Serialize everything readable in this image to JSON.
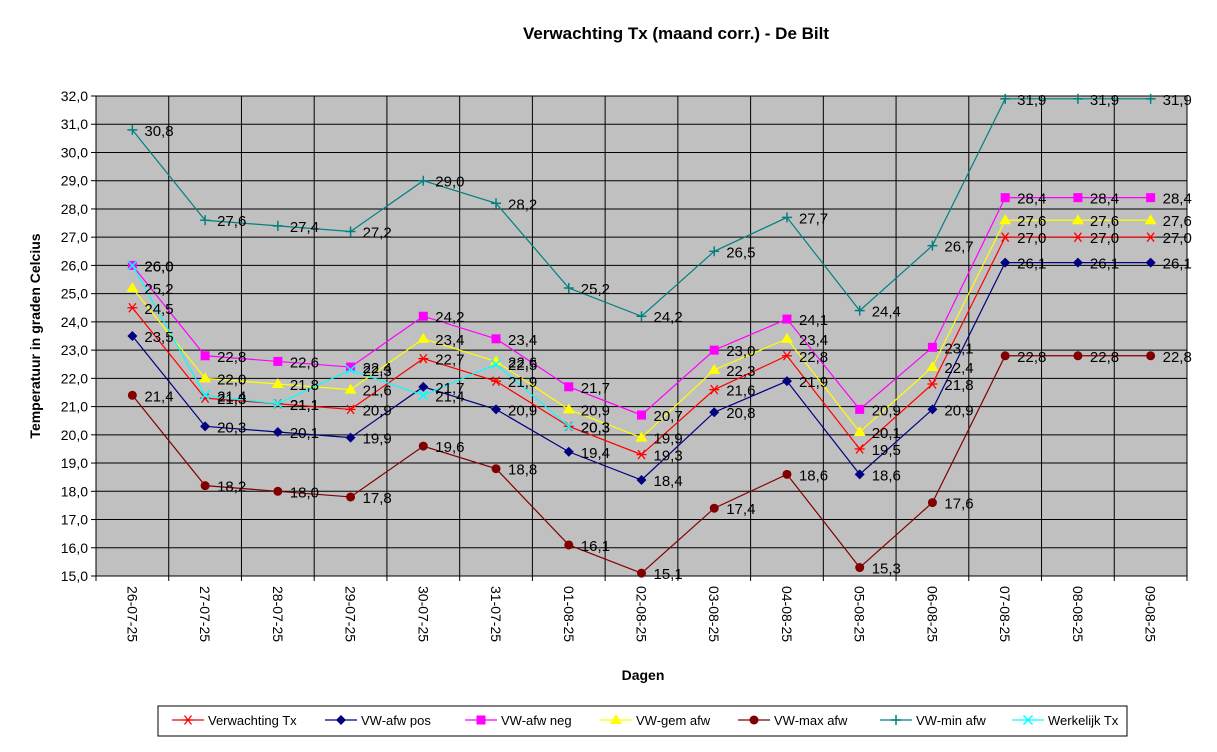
{
  "chart_data": {
    "type": "line",
    "title": "Verwachting Tx (maand corr.) - De Bilt",
    "xlabel": "Dagen",
    "ylabel": "Temperatuur in graden Celcius",
    "ylim": [
      15.0,
      32.0
    ],
    "ytick_step": 1.0,
    "yticks": [
      "15,0",
      "16,0",
      "17,0",
      "18,0",
      "19,0",
      "20,0",
      "21,0",
      "22,0",
      "23,0",
      "24,0",
      "25,0",
      "26,0",
      "27,0",
      "28,0",
      "29,0",
      "30,0",
      "31,0",
      "32,0"
    ],
    "grid": true,
    "plot_background": "#c0c0c0",
    "legend_position": "bottom",
    "categories": [
      "26-07-25",
      "27-07-25",
      "28-07-25",
      "29-07-25",
      "30-07-25",
      "31-07-25",
      "01-08-25",
      "02-08-25",
      "03-08-25",
      "04-08-25",
      "05-08-25",
      "06-08-25",
      "07-08-25",
      "08-08-25",
      "09-08-25"
    ],
    "series": [
      {
        "name": "Verwachting Tx",
        "color": "#ff0000",
        "marker": "asterisk",
        "values": [
          24.5,
          21.3,
          21.1,
          20.9,
          22.7,
          21.9,
          20.3,
          19.3,
          21.6,
          22.8,
          19.5,
          21.8,
          27.0,
          27.0,
          27.0
        ],
        "labels": [
          "24,5",
          "21,3",
          "21,1",
          "20,9",
          "22,7",
          "21,9",
          "20,3",
          "19,3",
          "21,6",
          "22,8",
          "19,5",
          "21,8",
          "27,0",
          "27,0",
          "27,0"
        ]
      },
      {
        "name": "VW-afw pos",
        "color": "#000080",
        "marker": "diamond",
        "values": [
          23.5,
          20.3,
          20.1,
          19.9,
          21.7,
          20.9,
          19.4,
          18.4,
          20.8,
          21.9,
          18.6,
          20.9,
          26.1,
          26.1,
          26.1
        ],
        "labels": [
          "23,5",
          "20,3",
          "20,1",
          "19,9",
          "21,7",
          "20,9",
          "19,4",
          "18,4",
          "20,8",
          "21,9",
          "18,6",
          "20,9",
          "26,1",
          "26,1",
          "26,1"
        ]
      },
      {
        "name": "VW-afw neg",
        "color": "#ff00ff",
        "marker": "square",
        "values": [
          26.0,
          22.8,
          22.6,
          22.4,
          24.2,
          23.4,
          21.7,
          20.7,
          23.0,
          24.1,
          20.9,
          23.1,
          28.4,
          28.4,
          28.4
        ],
        "labels": [
          "26,0",
          "22,8",
          "22,6",
          "22,4",
          "24,2",
          "23,4",
          "21,7",
          "20,7",
          "23,0",
          "24,1",
          "20,9",
          "23,1",
          "28,4",
          "28,4",
          "28,4"
        ]
      },
      {
        "name": "VW-gem afw",
        "color": "#ffff00",
        "marker": "triangle",
        "values": [
          25.2,
          22.0,
          21.8,
          21.6,
          23.4,
          22.6,
          20.9,
          19.9,
          22.3,
          23.4,
          20.1,
          22.4,
          27.6,
          27.6,
          27.6
        ],
        "labels": [
          "25,2",
          "22,0",
          "21,8",
          "21,6",
          "23,4",
          "22,6",
          "20,9",
          "19,9",
          "22,3",
          "23,4",
          "20,1",
          "22,4",
          "27,6",
          "27,6",
          "27,6"
        ]
      },
      {
        "name": "VW-max afw",
        "color": "#800000",
        "marker": "circle",
        "values": [
          21.4,
          18.2,
          18.0,
          17.8,
          19.6,
          18.8,
          16.1,
          15.1,
          17.4,
          18.6,
          15.3,
          17.6,
          22.8,
          22.8,
          22.8
        ],
        "labels": [
          "21,4",
          "18,2",
          "18,0",
          "17,8",
          "19,6",
          "18,8",
          "16,1",
          "15,1",
          "17,4",
          "18,6",
          "15,3",
          "17,6",
          "22,8",
          "22,8",
          "22,8"
        ]
      },
      {
        "name": "VW-min afw",
        "color": "#008080",
        "marker": "plus",
        "values": [
          30.8,
          27.6,
          27.4,
          27.2,
          29.0,
          28.2,
          25.2,
          24.2,
          26.5,
          27.7,
          24.4,
          26.7,
          31.9,
          31.9,
          31.9
        ],
        "labels": [
          "30,8",
          "27,6",
          "27,4",
          "27,2",
          "29,0",
          "28,2",
          "25,2",
          "24,2",
          "26,5",
          "27,7",
          "24,4",
          "26,7",
          "31,9",
          "31,9",
          "31,9"
        ]
      },
      {
        "name": "Werkelijk Tx",
        "color": "#00ffff",
        "marker": "x",
        "values": [
          26.0,
          21.4,
          21.1,
          22.3,
          21.4,
          22.5,
          20.3,
          null,
          null,
          null,
          null,
          null,
          null,
          null,
          null
        ],
        "labels": [
          "26,0",
          "21,4",
          "21,1",
          "22,3",
          "21,4",
          "22,5",
          "20,3",
          null,
          null,
          null,
          null,
          null,
          null,
          null,
          null
        ]
      }
    ]
  }
}
